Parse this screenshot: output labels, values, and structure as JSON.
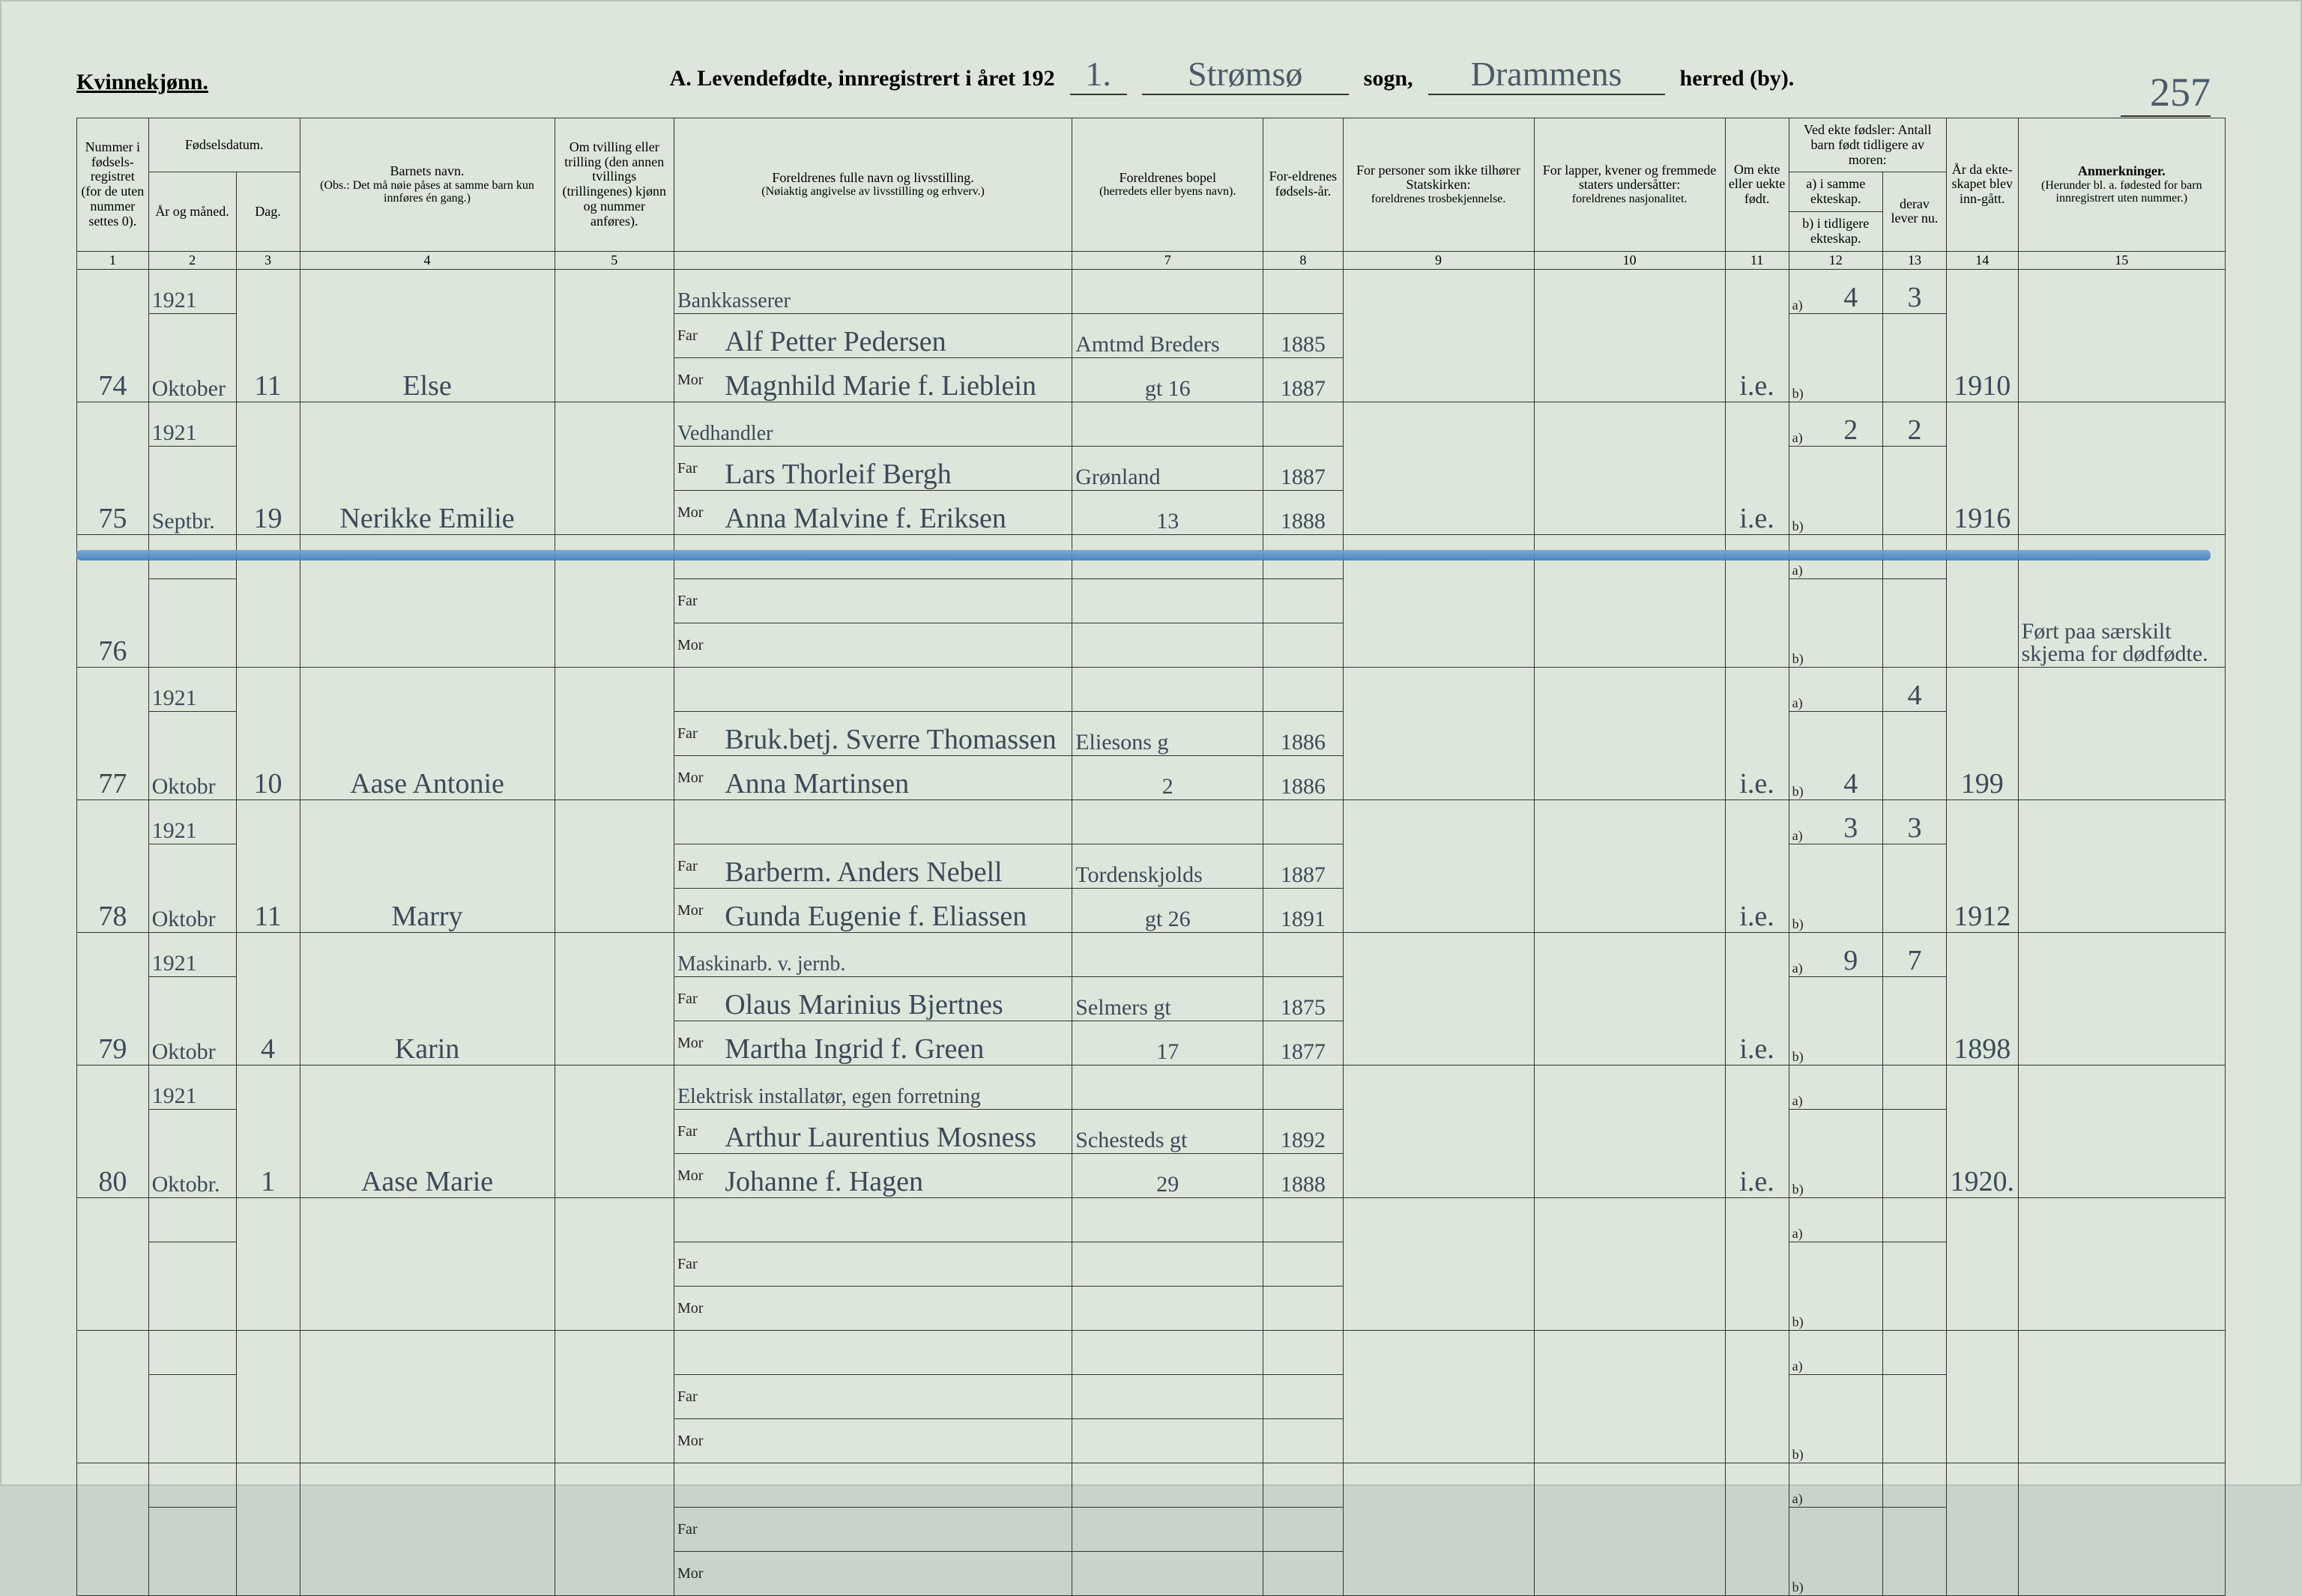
{
  "gender_label": "Kvinnekjønn.",
  "title_prefix": "A.  Levendefødte, innregistrert i året 192",
  "year_suffix": "1.",
  "sogn_value": "Strømsø",
  "sogn_label": "sogn,",
  "herred_value": "Drammens",
  "herred_label": "herred (by).",
  "page_number": "257",
  "headers": {
    "c1": "Nummer i fødsels-registret (for de uten nummer settes 0).",
    "c2_top": "Fødselsdatum.",
    "c2_year": "År og måned.",
    "c2_day": "Dag.",
    "c4_top": "Barnets navn.",
    "c4_note": "(Obs.: Det må nøie påses at samme barn kun innføres én gang.)",
    "c5": "Om tvilling eller trilling (den annen tvillings (trillingenes) kjønn og nummer anføres).",
    "c6_top": "Foreldrenes fulle navn og livsstilling.",
    "c6_note": "(Nøiaktig angivelse av livsstilling og erhverv.)",
    "c7_top": "Foreldrenes bopel",
    "c7_note": "(herredets eller byens navn).",
    "c8": "For-eldrenes fødsels-år.",
    "c9_top": "For personer som ikke tilhører Statskirken:",
    "c9_note": "foreldrenes trosbekjennelse.",
    "c10_top": "For lapper, kvener og fremmede staters undersåtter:",
    "c10_note": "foreldrenes nasjonalitet.",
    "c11": "Om ekte eller uekte født.",
    "c12_top": "Ved ekte fødsler: Antall barn født tidligere av moren:",
    "c12a": "a) i samme ekteskap.",
    "c12b": "b) i tidligere ekteskap.",
    "c13": "derav lever nu.",
    "c14": "År da ekte-skapet blev inn-gått.",
    "c15_top": "Anmerkninger.",
    "c15_note": "(Herunder bl. a. fødested for barn innregistrert uten nummer.)",
    "far": "Far",
    "mor": "Mor",
    "a": "a)",
    "b": "b)"
  },
  "colnums": [
    "1",
    "2",
    "3",
    "4",
    "5",
    "",
    "",
    "7",
    "8",
    "9",
    "10",
    "11",
    "",
    "12",
    "13",
    "14",
    "15"
  ],
  "rows": [
    {
      "num": "74",
      "year": "1921",
      "month": "Oktober",
      "day": "11",
      "name": "Else",
      "occ": "Bankkasserer",
      "far": "Alf Petter Pedersen",
      "mor": "Magnhild Marie f. Lieblein",
      "far_res": "Amtmd Breders",
      "mor_res": "gt 16",
      "far_year": "1885",
      "mor_year": "1887",
      "ekte": "i.e.",
      "a": "4",
      "b": "",
      "lever": "3",
      "married": "1910",
      "note": ""
    },
    {
      "num": "75",
      "year": "1921",
      "month": "Septbr.",
      "day": "19",
      "name": "Nerikke Emilie",
      "occ": "Vedhandler",
      "far": "Lars Thorleif Bergh",
      "mor": "Anna Malvine f. Eriksen",
      "far_res": "Grønland",
      "mor_res": "13",
      "far_year": "1887",
      "mor_year": "1888",
      "ekte": "i.e.",
      "a": "2",
      "b": "",
      "lever": "2",
      "married": "1916",
      "note": ""
    },
    {
      "num": "76",
      "year": "",
      "month": "",
      "day": "",
      "name": "",
      "occ": "",
      "far": "",
      "mor": "",
      "far_res": "",
      "mor_res": "",
      "far_year": "",
      "mor_year": "",
      "ekte": "",
      "a": "",
      "b": "",
      "lever": "",
      "married": "",
      "note": "Ført paa særskilt skjema for dødfødte."
    },
    {
      "num": "77",
      "year": "1921",
      "month": "Oktobr",
      "day": "10",
      "name": "Aase Antonie",
      "occ": "",
      "far": "Bruk.betj. Sverre Thomassen",
      "mor": "Anna Martinsen",
      "far_res": "Eliesons g",
      "mor_res": "2",
      "far_year": "1886",
      "mor_year": "1886",
      "ekte": "i.e.",
      "a": "",
      "b": "4",
      "lever": "4",
      "married": "199",
      "note": ""
    },
    {
      "num": "78",
      "year": "1921",
      "month": "Oktobr",
      "day": "11",
      "name": "Marry",
      "occ": "",
      "far": "Barberm. Anders Nebell",
      "mor": "Gunda Eugenie f. Eliassen",
      "far_res": "Tordenskjolds",
      "mor_res": "gt 26",
      "far_year": "1887",
      "mor_year": "1891",
      "ekte": "i.e.",
      "a": "3",
      "b": "",
      "lever": "3",
      "married": "1912",
      "note": ""
    },
    {
      "num": "79",
      "year": "1921",
      "month": "Oktobr",
      "day": "4",
      "name": "Karin",
      "occ": "Maskinarb. v. jernb.",
      "far": "Olaus Marinius Bjertnes",
      "mor": "Martha Ingrid f. Green",
      "far_res": "Selmers gt",
      "mor_res": "17",
      "far_year": "1875",
      "mor_year": "1877",
      "ekte": "i.e.",
      "a": "9",
      "b": "",
      "lever": "7",
      "married": "1898",
      "note": ""
    },
    {
      "num": "80",
      "year": "1921",
      "month": "Oktobr.",
      "day": "1",
      "name": "Aase Marie",
      "occ": "Elektrisk installatør, egen forretning",
      "far": "Arthur Laurentius Mosness",
      "mor": "Johanne f. Hagen",
      "far_res": "Schesteds gt",
      "mor_res": "29",
      "far_year": "1892",
      "mor_year": "1888",
      "ekte": "i.e.",
      "a": "",
      "b": "",
      "lever": "",
      "married": "1920.",
      "note": ""
    },
    {
      "num": "",
      "year": "",
      "month": "",
      "day": "",
      "name": "",
      "occ": "",
      "far": "",
      "mor": "",
      "far_res": "",
      "mor_res": "",
      "far_year": "",
      "mor_year": "",
      "ekte": "",
      "a": "",
      "b": "",
      "lever": "",
      "married": "",
      "note": ""
    },
    {
      "num": "",
      "year": "",
      "month": "",
      "day": "",
      "name": "",
      "occ": "",
      "far": "",
      "mor": "",
      "far_res": "",
      "mor_res": "",
      "far_year": "",
      "mor_year": "",
      "ekte": "",
      "a": "",
      "b": "",
      "lever": "",
      "married": "",
      "note": ""
    },
    {
      "num": "",
      "year": "",
      "month": "",
      "day": "",
      "name": "",
      "occ": "",
      "far": "",
      "mor": "",
      "far_res": "",
      "mor_res": "",
      "far_year": "",
      "mor_year": "",
      "ekte": "",
      "a": "",
      "b": "",
      "lever": "",
      "married": "",
      "note": ""
    }
  ]
}
